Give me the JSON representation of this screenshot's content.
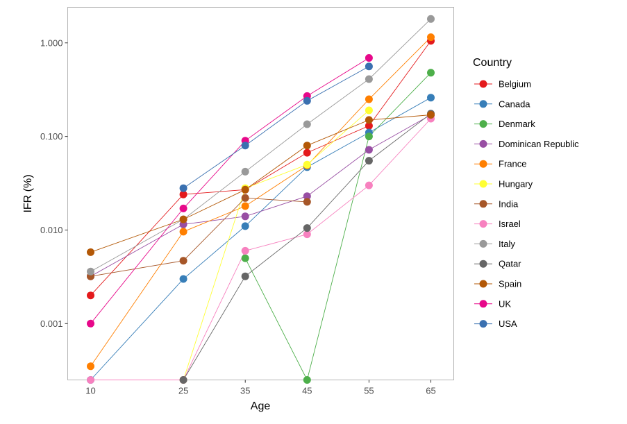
{
  "chart_data": {
    "type": "line",
    "xlabel": "Age",
    "ylabel": "IFR (%)",
    "y_scale": "log10",
    "ylim": [
      0.00025,
      2.4
    ],
    "x": [
      10,
      25,
      35,
      45,
      55,
      65
    ],
    "x_ticks": [
      "10",
      "25",
      "35",
      "45",
      "55",
      "65"
    ],
    "y_ticks": [
      {
        "value": 0.001,
        "label": "0.001"
      },
      {
        "value": 0.01,
        "label": "0.010"
      },
      {
        "value": 0.1,
        "label": "0.100"
      },
      {
        "value": 1,
        "label": "1.000"
      }
    ],
    "grid": false,
    "legend": {
      "title": "Country",
      "position": "right"
    },
    "series": [
      {
        "name": "Belgium",
        "color": "#E41A1C",
        "values": [
          0.002,
          0.024,
          0.027,
          0.067,
          0.13,
          1.05
        ]
      },
      {
        "name": "Canada",
        "color": "#377EB8",
        "values": [
          0.00025,
          0.003,
          0.011,
          0.047,
          0.11,
          0.26
        ]
      },
      {
        "name": "Denmark",
        "color": "#4DAF4A",
        "values": [
          null,
          null,
          0.005,
          0.00025,
          0.1,
          0.48
        ]
      },
      {
        "name": "Dominican Republic",
        "color": "#984EA3",
        "values": [
          0.0032,
          0.0115,
          0.014,
          0.023,
          0.072,
          0.17
        ]
      },
      {
        "name": "France",
        "color": "#FF7F00",
        "values": [
          0.00035,
          0.0096,
          0.018,
          0.049,
          0.25,
          1.15
        ]
      },
      {
        "name": "Hungary",
        "color": "#FFFF33",
        "values": [
          null,
          0.00025,
          0.028,
          0.05,
          0.19,
          null
        ]
      },
      {
        "name": "India",
        "color": "#A65628",
        "values": [
          0.0032,
          0.0047,
          0.022,
          0.02,
          null,
          null
        ]
      },
      {
        "name": "Israel",
        "color": "#F781BF",
        "values": [
          0.00025,
          0.00025,
          0.006,
          0.009,
          0.03,
          0.155
        ]
      },
      {
        "name": "Italy",
        "color": "#999999",
        "values": [
          0.0036,
          0.013,
          0.042,
          0.135,
          0.41,
          1.8
        ]
      },
      {
        "name": "Qatar",
        "color": "#666666",
        "values": [
          null,
          0.00025,
          0.0032,
          0.0105,
          0.055,
          0.175
        ]
      },
      {
        "name": "Spain",
        "color": "#B35806",
        "values": [
          0.0058,
          0.013,
          0.027,
          0.08,
          0.15,
          0.17
        ]
      },
      {
        "name": "UK",
        "color": "#E7088A",
        "values": [
          0.001,
          0.017,
          0.09,
          0.27,
          0.69,
          null
        ]
      },
      {
        "name": "USA",
        "color": "#3A70B0",
        "values": [
          null,
          0.028,
          0.08,
          0.24,
          0.56,
          null
        ]
      }
    ]
  }
}
